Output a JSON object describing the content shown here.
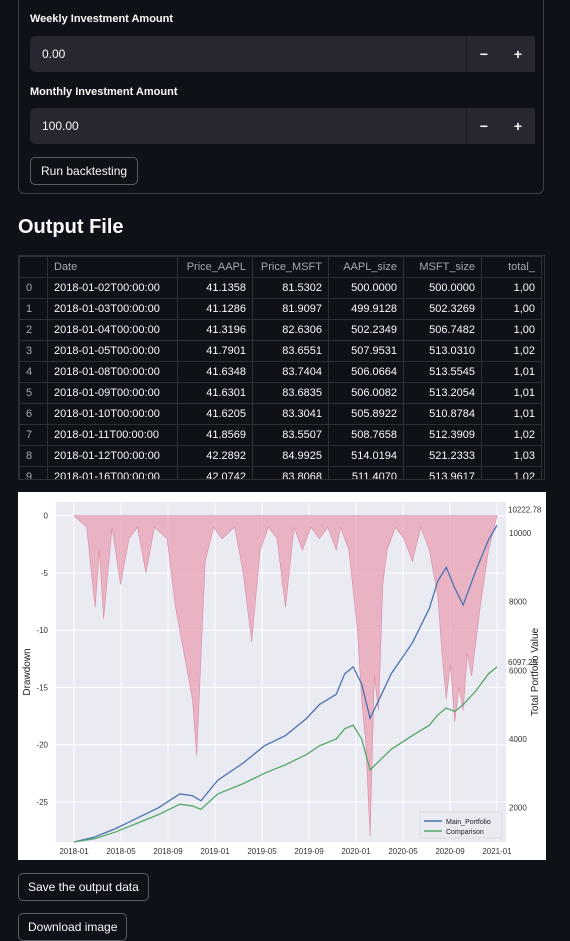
{
  "weekly": {
    "label": "Weekly Investment Amount",
    "value": "0.00",
    "minus": "−",
    "plus": "+"
  },
  "monthly": {
    "label": "Monthly Investment Amount",
    "value": "100.00",
    "minus": "−",
    "plus": "+"
  },
  "run_button": "Run backtesting",
  "output_title": "Output File",
  "table": {
    "headers": [
      "",
      "Date",
      "Price_AAPL",
      "Price_MSFT",
      "AAPL_size",
      "MSFT_size",
      "total_"
    ],
    "rows": [
      [
        "0",
        "2018-01-02T00:00:00",
        "41.1358",
        "81.5302",
        "500.0000",
        "500.0000",
        "1,00"
      ],
      [
        "1",
        "2018-01-03T00:00:00",
        "41.1286",
        "81.9097",
        "499.9128",
        "502.3269",
        "1,00"
      ],
      [
        "2",
        "2018-01-04T00:00:00",
        "41.3196",
        "82.6306",
        "502.2349",
        "506.7482",
        "1,00"
      ],
      [
        "3",
        "2018-01-05T00:00:00",
        "41.7901",
        "83.6551",
        "507.9531",
        "513.0310",
        "1,02"
      ],
      [
        "4",
        "2018-01-08T00:00:00",
        "41.6348",
        "83.7404",
        "506.0664",
        "513.5545",
        "1,01"
      ],
      [
        "5",
        "2018-01-09T00:00:00",
        "41.6301",
        "83.6835",
        "506.0082",
        "513.2054",
        "1,01"
      ],
      [
        "6",
        "2018-01-10T00:00:00",
        "41.6205",
        "83.3041",
        "505.8922",
        "510.8784",
        "1,01"
      ],
      [
        "7",
        "2018-01-11T00:00:00",
        "41.8569",
        "83.5507",
        "508.7658",
        "512.3909",
        "1,02"
      ],
      [
        "8",
        "2018-01-12T00:00:00",
        "42.2892",
        "84.9925",
        "514.0194",
        "521.2333",
        "1,03"
      ],
      [
        "9",
        "2018-01-16T00:00:00",
        "42.0742",
        "83.8068",
        "511.4070",
        "513.9617",
        "1,02"
      ]
    ]
  },
  "chart_data": {
    "type": "line",
    "xlabel": "",
    "ylabel_left": "Drawdown",
    "ylabel_right": "Total Portfolio Value",
    "x_ticks": [
      "2018-01",
      "2018-05",
      "2018-09",
      "2019-01",
      "2019-05",
      "2019-09",
      "2020-01",
      "2020-05",
      "2020-09",
      "2021-01"
    ],
    "y_left_ticks": [
      0,
      -5,
      -10,
      -15,
      -20,
      -25
    ],
    "y_left_lim": [
      -28.5,
      1.2
    ],
    "y_right_ticks": [
      2000,
      4000,
      6000,
      8000,
      10000
    ],
    "y_right_lim": [
      1000,
      10900
    ],
    "end_labels": [
      "10222.78",
      "6097.25"
    ],
    "legend_position": "lower-right",
    "series": [
      {
        "name": "Main_Portfolio",
        "color": "#4c72b0",
        "x": [
          0,
          0.05,
          0.1,
          0.15,
          0.2,
          0.25,
          0.28,
          0.3,
          0.34,
          0.4,
          0.45,
          0.5,
          0.55,
          0.58,
          0.62,
          0.64,
          0.66,
          0.68,
          0.7,
          0.75,
          0.8,
          0.84,
          0.86,
          0.88,
          0.9,
          0.92,
          0.95,
          0.98,
          1.0
        ],
        "values": [
          1000,
          1150,
          1400,
          1700,
          2000,
          2400,
          2350,
          2200,
          2800,
          3300,
          3800,
          4100,
          4600,
          5000,
          5300,
          5900,
          6100,
          5600,
          4600,
          5900,
          6800,
          7800,
          8600,
          9000,
          8400,
          7900,
          8900,
          9800,
          10222.78
        ]
      },
      {
        "name": "Comparison",
        "color": "#55a868",
        "x": [
          0,
          0.05,
          0.1,
          0.15,
          0.2,
          0.25,
          0.28,
          0.3,
          0.34,
          0.4,
          0.45,
          0.5,
          0.55,
          0.58,
          0.62,
          0.64,
          0.66,
          0.68,
          0.7,
          0.75,
          0.8,
          0.84,
          0.86,
          0.88,
          0.9,
          0.92,
          0.95,
          0.98,
          1.0
        ],
        "values": [
          1000,
          1100,
          1300,
          1550,
          1800,
          2100,
          2050,
          1950,
          2400,
          2700,
          3000,
          3250,
          3550,
          3800,
          4000,
          4300,
          4400,
          4000,
          3100,
          3700,
          4100,
          4400,
          4700,
          4900,
          4800,
          5000,
          5400,
          5900,
          6097.25
        ]
      }
    ],
    "drawdown": {
      "color": "#e8a0b4",
      "x": [
        0,
        0.03,
        0.05,
        0.06,
        0.07,
        0.09,
        0.11,
        0.13,
        0.15,
        0.17,
        0.19,
        0.22,
        0.24,
        0.26,
        0.28,
        0.29,
        0.31,
        0.33,
        0.35,
        0.38,
        0.4,
        0.42,
        0.44,
        0.46,
        0.48,
        0.5,
        0.52,
        0.54,
        0.56,
        0.58,
        0.6,
        0.62,
        0.63,
        0.64,
        0.65,
        0.67,
        0.68,
        0.69,
        0.7,
        0.71,
        0.72,
        0.73,
        0.74,
        0.76,
        0.78,
        0.8,
        0.82,
        0.84,
        0.86,
        0.87,
        0.88,
        0.89,
        0.9,
        0.91,
        0.92,
        0.93,
        0.94,
        0.96,
        0.98,
        1.0
      ],
      "values": [
        0,
        -1,
        -8,
        -3,
        -9,
        -1,
        -6,
        -2,
        -1,
        -5,
        -1,
        -2,
        -8,
        -12,
        -16,
        -21,
        -4,
        -1,
        -2,
        -1,
        -5,
        -11,
        -3,
        -1,
        -2,
        -8,
        -1,
        -3,
        -1,
        -2,
        -1,
        -3,
        -1,
        -2,
        -3,
        -10,
        -16,
        -20,
        -28,
        -14,
        -17,
        -6,
        -3,
        -1,
        -2,
        -4,
        -1,
        -3,
        -7,
        -12,
        -16,
        -13,
        -18,
        -15,
        -17,
        -12,
        -14,
        -8,
        -3,
        0
      ]
    }
  },
  "save_button": "Save the output data",
  "download_button": "Download image"
}
